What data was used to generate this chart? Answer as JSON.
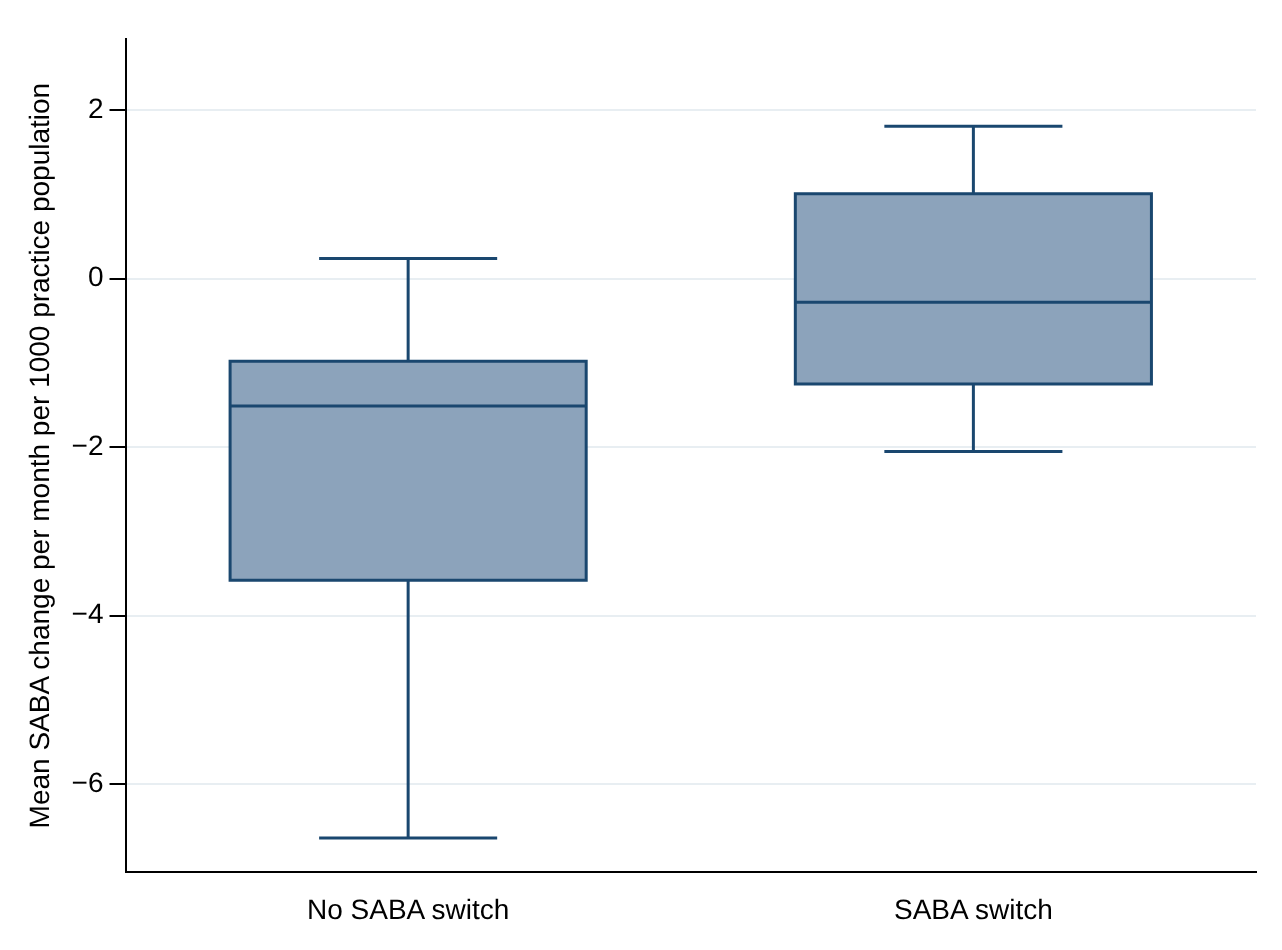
{
  "chart_data": {
    "type": "box",
    "ylabel": "Mean SABA change per month per 1000 practice population",
    "categories": [
      "No SABA switch",
      "SABA switch"
    ],
    "color": "#8ca3bb",
    "boxes": [
      {
        "low": -6.64,
        "q1": -3.58,
        "median": -1.51,
        "q3": -0.98,
        "high": 0.24
      },
      {
        "low": -2.05,
        "q1": -1.25,
        "median": -0.28,
        "q3": 1.01,
        "high": 1.81
      }
    ],
    "ylim": [
      -7.05,
      2.85
    ],
    "yticks": [
      {
        "value": -6,
        "label": "−6"
      },
      {
        "value": -4,
        "label": "−4"
      },
      {
        "value": -2,
        "label": "−2"
      },
      0,
      2
    ],
    "grid": "y"
  }
}
